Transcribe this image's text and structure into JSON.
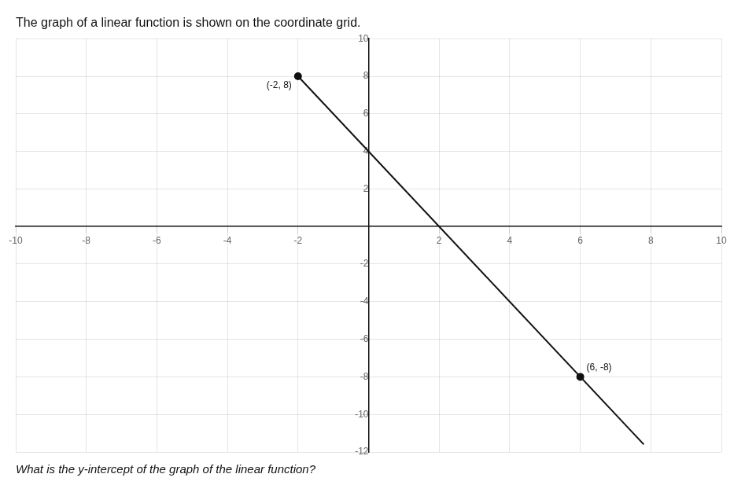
{
  "chart_data": {
    "type": "line",
    "title": "The graph of a linear function is shown on the coordinate grid.",
    "subtitle": "What is the y-intercept of the graph of the linear function?",
    "series": [
      {
        "type": "line",
        "x": [
          -2.0,
          7.8
        ],
        "values": [
          8,
          -11.6
        ],
        "color": "#111111",
        "marker": "none"
      },
      {
        "type": "scatter",
        "x": [
          -2,
          6
        ],
        "values": [
          8,
          -8
        ],
        "color": "#111111",
        "marker": "circle"
      }
    ],
    "annotations": [
      {
        "x": -2,
        "y": 8,
        "text": "(-2, 8)"
      },
      {
        "x": 6,
        "y": -8,
        "text": "(6, -8)"
      }
    ],
    "xlim": [
      -10,
      10
    ],
    "ylim": [
      -12,
      10
    ],
    "xticks": [
      -10,
      -8,
      -6,
      -4,
      -2,
      2,
      4,
      6,
      8,
      10
    ],
    "yticks": [
      -12,
      -10,
      -8,
      -6,
      -4,
      -2,
      2,
      4,
      6,
      8,
      10
    ],
    "grid": true
  }
}
